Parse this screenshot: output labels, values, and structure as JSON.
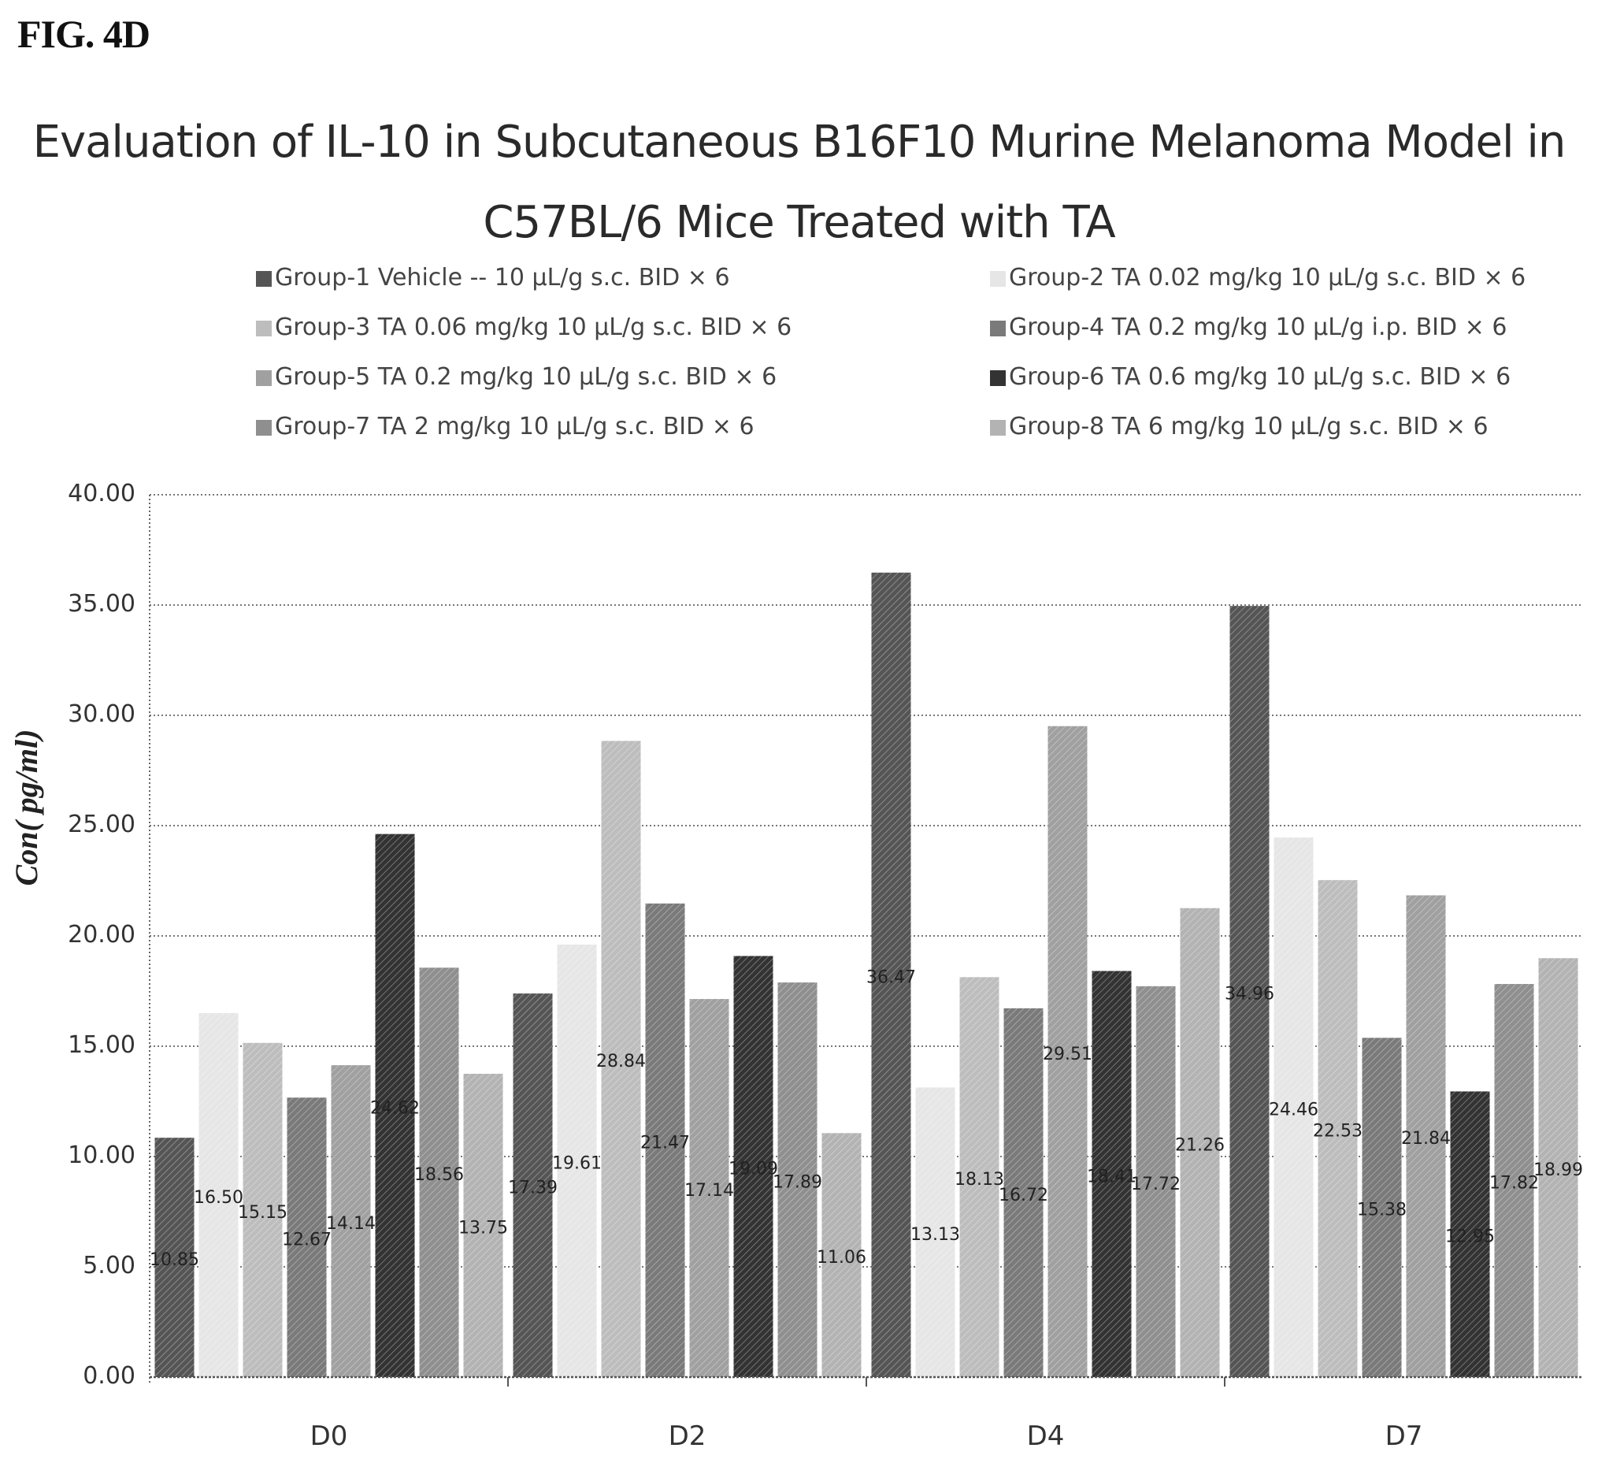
{
  "figure_label": "FIG. 4D",
  "chart_data": {
    "type": "bar",
    "title_lines": [
      "Evaluation of IL-10 in Subcutaneous B16F10 Murine Melanoma Model in",
      "C57BL/6 Mice Treated with TA"
    ],
    "ylabel": "Con( pg/ml)",
    "xlabel": "",
    "ylim": [
      0,
      40
    ],
    "yticks": [
      "0.00",
      "5.00",
      "10.00",
      "15.00",
      "20.00",
      "25.00",
      "30.00",
      "35.00",
      "40.00"
    ],
    "grid": true,
    "legend_position": "top",
    "categories": [
      "D0",
      "D2",
      "D4",
      "D7"
    ],
    "series": [
      {
        "name": "Group-1 Vehicle -- 10 μL/g s.c. BID × 6",
        "color": "#555555",
        "values": [
          10.85,
          17.39,
          36.47,
          34.96
        ],
        "labels": [
          "10.85",
          "17.39",
          "36.47",
          "34.96"
        ]
      },
      {
        "name": "Group-2 TA 0.02 mg/kg 10 μL/g s.c. BID × 6",
        "color": "#e6e6e6",
        "values": [
          16.5,
          19.61,
          13.13,
          24.46
        ],
        "labels": [
          "16.50",
          "19.61",
          "13.13",
          "24.46"
        ]
      },
      {
        "name": "Group-3 TA 0.06 mg/kg 10 μL/g s.c. BID × 6",
        "color": "#bdbdbd",
        "values": [
          15.15,
          28.84,
          18.13,
          22.53
        ],
        "labels": [
          "15.15",
          "28.84",
          "18.13",
          "22.53"
        ]
      },
      {
        "name": "Group-4 TA 0.2 mg/kg 10 μL/g i.p. BID × 6",
        "color": "#7a7a7a",
        "values": [
          12.67,
          21.47,
          16.72,
          15.38
        ],
        "labels": [
          "12.67",
          "21.47",
          "16.72",
          "15.38"
        ]
      },
      {
        "name": "Group-5 TA 0.2 mg/kg 10 μL/g s.c. BID × 6",
        "color": "#a0a0a0",
        "values": [
          14.14,
          17.14,
          29.51,
          21.84
        ],
        "labels": [
          "14.14",
          "17.14",
          "29.51",
          "21.84"
        ]
      },
      {
        "name": "Group-6 TA 0.6 mg/kg 10 μL/g s.c. BID × 6",
        "color": "#333333",
        "values": [
          24.62,
          19.09,
          18.41,
          12.95
        ],
        "labels": [
          "24.62",
          "19.09",
          "18.41",
          "12.95"
        ]
      },
      {
        "name": "Group-7 TA 2 mg/kg 10 μL/g s.c. BID × 6",
        "color": "#8f8f8f",
        "values": [
          18.56,
          17.89,
          17.72,
          17.82
        ],
        "labels": [
          "18.56",
          "17.89",
          "17.72",
          "17.82"
        ]
      },
      {
        "name": "Group-8 TA 6 mg/kg 10 μL/g s.c. BID × 6",
        "color": "#b3b3b3",
        "values": [
          13.75,
          11.06,
          21.26,
          18.99
        ],
        "labels": [
          "13.75",
          "11.06",
          "21.26",
          "18.99"
        ]
      }
    ]
  }
}
